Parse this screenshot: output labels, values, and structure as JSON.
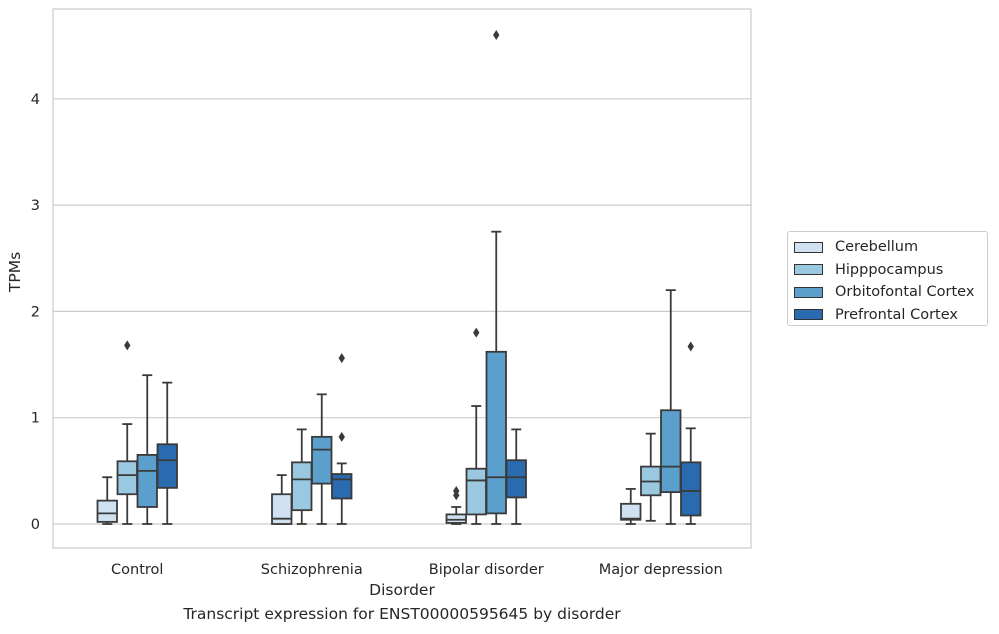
{
  "chart_data": {
    "type": "boxplot",
    "title": "Transcript expression for ENST00000595645 by disorder",
    "xlabel": "Disorder",
    "ylabel": "TPMs",
    "ylim": [
      -0.22,
      4.84
    ],
    "yticks": [
      "0",
      "1",
      "2",
      "3",
      "4"
    ],
    "grid": true,
    "legend_position": "right",
    "categories": [
      "Control",
      "Schizophrenia",
      "Bipolar disorder",
      "Major depression"
    ],
    "series": [
      {
        "name": "Cerebellum",
        "color": "#d0e2f2",
        "boxes": [
          {
            "whislo": 0.0,
            "q1": 0.02,
            "med": 0.1,
            "q3": 0.22,
            "whishi": 0.44,
            "fliers": []
          },
          {
            "whislo": 0.0,
            "q1": 0.0,
            "med": 0.05,
            "q3": 0.28,
            "whishi": 0.46,
            "fliers": []
          },
          {
            "whislo": 0.0,
            "q1": 0.01,
            "med": 0.04,
            "q3": 0.09,
            "whishi": 0.16,
            "fliers": [
              0.27,
              0.31
            ]
          },
          {
            "whislo": 0.0,
            "q1": 0.04,
            "med": 0.05,
            "q3": 0.19,
            "whishi": 0.33,
            "fliers": []
          }
        ]
      },
      {
        "name": "Hipppocampus",
        "color": "#9ac8e0",
        "boxes": [
          {
            "whislo": 0.0,
            "q1": 0.28,
            "med": 0.46,
            "q3": 0.59,
            "whishi": 0.94,
            "fliers": [
              1.68
            ]
          },
          {
            "whislo": 0.0,
            "q1": 0.13,
            "med": 0.42,
            "q3": 0.58,
            "whishi": 0.89,
            "fliers": []
          },
          {
            "whislo": 0.0,
            "q1": 0.09,
            "med": 0.41,
            "q3": 0.52,
            "whishi": 1.11,
            "fliers": [
              1.8
            ]
          },
          {
            "whislo": 0.03,
            "q1": 0.27,
            "med": 0.4,
            "q3": 0.54,
            "whishi": 0.85,
            "fliers": []
          }
        ]
      },
      {
        "name": "Orbitofontal Cortex",
        "color": "#5b9fcd",
        "boxes": [
          {
            "whislo": 0.0,
            "q1": 0.16,
            "med": 0.5,
            "q3": 0.65,
            "whishi": 1.4,
            "fliers": []
          },
          {
            "whislo": 0.0,
            "q1": 0.38,
            "med": 0.7,
            "q3": 0.82,
            "whishi": 1.22,
            "fliers": []
          },
          {
            "whislo": 0.0,
            "q1": 0.1,
            "med": 0.44,
            "q3": 1.62,
            "whishi": 2.75,
            "fliers": [
              4.6
            ]
          },
          {
            "whislo": 0.0,
            "q1": 0.3,
            "med": 0.54,
            "q3": 1.07,
            "whishi": 2.2,
            "fliers": []
          }
        ]
      },
      {
        "name": "Prefrontal Cortex",
        "color": "#2a6aae",
        "boxes": [
          {
            "whislo": 0.0,
            "q1": 0.34,
            "med": 0.6,
            "q3": 0.75,
            "whishi": 1.33,
            "fliers": []
          },
          {
            "whislo": 0.0,
            "q1": 0.24,
            "med": 0.42,
            "q3": 0.47,
            "whishi": 0.57,
            "fliers": [
              0.82,
              1.56
            ]
          },
          {
            "whislo": 0.0,
            "q1": 0.25,
            "med": 0.44,
            "q3": 0.6,
            "whishi": 0.89,
            "fliers": []
          },
          {
            "whislo": 0.0,
            "q1": 0.08,
            "med": 0.31,
            "q3": 0.58,
            "whishi": 0.9,
            "fliers": [
              1.67
            ]
          }
        ]
      }
    ]
  }
}
